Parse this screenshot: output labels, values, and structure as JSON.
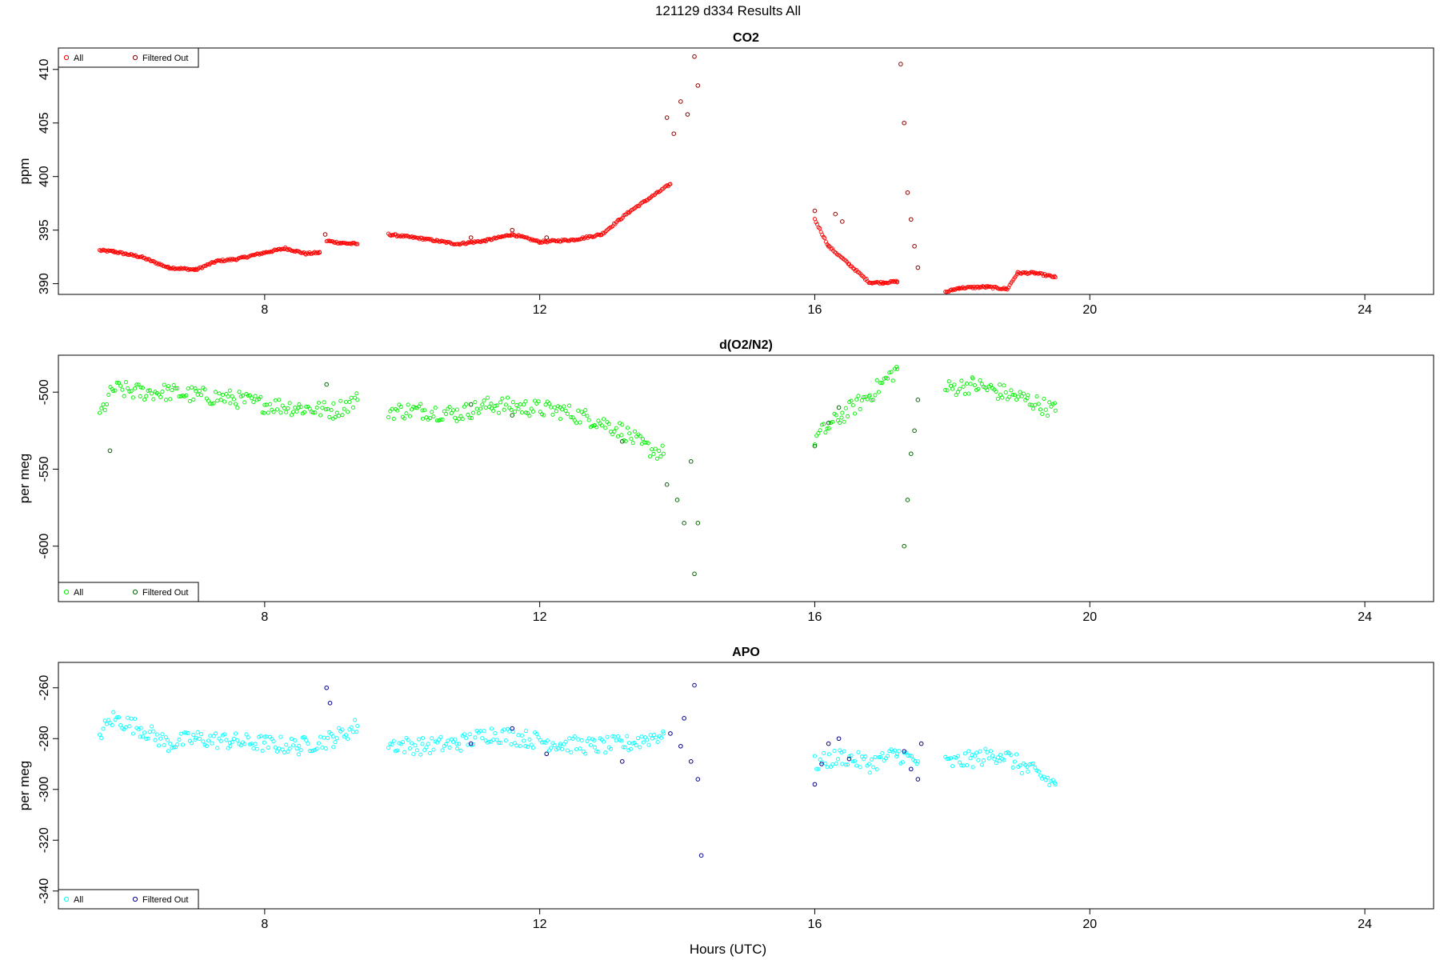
{
  "figure": {
    "title": "121129   d334   Results All",
    "xlabel": "Hours (UTC)"
  },
  "chart_data": [
    {
      "type": "scatter",
      "title": "CO2",
      "ylabel": "ppm",
      "xlim": [
        5,
        25
      ],
      "ylim": [
        389,
        412
      ],
      "xticks": [
        8,
        12,
        16,
        20,
        24
      ],
      "yticks": [
        390,
        395,
        400,
        405,
        410
      ],
      "legend": {
        "position": "top-left",
        "entries": [
          "All",
          "Filtered Out"
        ]
      },
      "colors": {
        "all": "#ff0000",
        "filtered": "#8b0000"
      },
      "series": [
        {
          "name": "All",
          "segments": [
            {
              "x": [
                5.6,
                5.8,
                6.2,
                6.6,
                7.0,
                7.3,
                7.6,
                8.0,
                8.3,
                8.6,
                8.8
              ],
              "y": [
                393.1,
                393.0,
                392.5,
                391.5,
                391.3,
                392.1,
                392.3,
                392.9,
                393.3,
                392.8,
                392.9
              ]
            },
            {
              "x": [
                8.9,
                9.1,
                9.35
              ],
              "y": [
                394.0,
                393.8,
                393.7
              ]
            },
            {
              "x": [
                9.8,
                10.3,
                10.8,
                11.2,
                11.6,
                12.0,
                12.5,
                12.9,
                13.3,
                13.6,
                13.9
              ],
              "y": [
                394.6,
                394.2,
                393.7,
                394.0,
                394.6,
                393.9,
                394.1,
                394.6,
                396.7,
                398.0,
                399.3
              ]
            },
            {
              "x": [
                16.0,
                16.2,
                16.5,
                16.8,
                17.0,
                17.2
              ],
              "y": [
                396.0,
                393.5,
                391.8,
                390.1,
                390.1,
                390.2
              ]
            },
            {
              "x": [
                17.9,
                18.1,
                18.5,
                18.8,
                18.95,
                19.2,
                19.5
              ],
              "y": [
                389.2,
                389.6,
                389.7,
                389.5,
                391.0,
                391.0,
                390.6
              ]
            }
          ]
        },
        {
          "name": "Filtered Out",
          "points": [
            [
              8.88,
              394.6
            ],
            [
              11.0,
              394.3
            ],
            [
              11.6,
              395.0
            ],
            [
              12.1,
              394.3
            ],
            [
              13.85,
              405.5
            ],
            [
              13.95,
              404.0
            ],
            [
              14.05,
              407.0
            ],
            [
              14.15,
              405.8
            ],
            [
              14.25,
              411.2
            ],
            [
              14.3,
              408.5
            ],
            [
              16.0,
              396.8
            ],
            [
              16.3,
              396.5
            ],
            [
              16.4,
              395.8
            ],
            [
              17.25,
              410.5
            ],
            [
              17.3,
              405.0
            ],
            [
              17.35,
              398.5
            ],
            [
              17.4,
              396.0
            ],
            [
              17.45,
              393.5
            ],
            [
              17.5,
              391.5
            ]
          ]
        }
      ]
    },
    {
      "type": "scatter",
      "title": "d(O2/N2)",
      "ylabel": "per meg",
      "xlim": [
        5,
        25
      ],
      "ylim": [
        -636,
        -476
      ],
      "xticks": [
        8,
        12,
        16,
        20,
        24
      ],
      "yticks": [
        -500,
        -550,
        -600
      ],
      "legend": {
        "position": "bottom-left",
        "entries": [
          "All",
          "Filtered Out"
        ]
      },
      "colors": {
        "all": "#00ee00",
        "filtered": "#006400"
      },
      "series": [
        {
          "name": "All",
          "segments": [
            {
              "x": [
                5.6,
                5.8,
                6.2,
                6.6,
                7.0,
                7.5,
                8.0,
                8.5,
                9.0,
                9.35
              ],
              "y": [
                -515,
                -498,
                -500,
                -500,
                -502,
                -504,
                -508,
                -510,
                -512,
                -505
              ]
            },
            {
              "x": [
                9.8,
                10.3,
                10.8,
                11.3,
                11.8,
                12.3,
                12.8,
                13.2,
                13.5,
                13.8
              ],
              "y": [
                -512,
                -512,
                -514,
                -508,
                -510,
                -512,
                -518,
                -525,
                -535,
                -540
              ]
            },
            {
              "x": [
                16.0,
                16.4,
                16.8,
                17.2
              ],
              "y": [
                -530,
                -515,
                -502,
                -485
              ]
            },
            {
              "x": [
                17.9,
                18.3,
                18.7,
                19.1,
                19.5
              ],
              "y": [
                -498,
                -495,
                -500,
                -505,
                -512
              ]
            }
          ]
        },
        {
          "name": "Filtered Out",
          "points": [
            [
              5.75,
              -538
            ],
            [
              8.9,
              -495
            ],
            [
              11.0,
              -508
            ],
            [
              11.6,
              -515
            ],
            [
              13.2,
              -532
            ],
            [
              13.85,
              -560
            ],
            [
              14.0,
              -570
            ],
            [
              14.1,
              -585
            ],
            [
              14.2,
              -545
            ],
            [
              14.25,
              -618
            ],
            [
              14.3,
              -585
            ],
            [
              16.0,
              -535
            ],
            [
              16.2,
              -520
            ],
            [
              16.35,
              -510
            ],
            [
              17.3,
              -600
            ],
            [
              17.35,
              -570
            ],
            [
              17.4,
              -540
            ],
            [
              17.45,
              -525
            ],
            [
              17.5,
              -505
            ]
          ]
        }
      ]
    },
    {
      "type": "scatter",
      "title": "APO",
      "ylabel": "per meg",
      "xlim": [
        5,
        25
      ],
      "ylim": [
        -347,
        -250
      ],
      "xticks": [
        8,
        12,
        16,
        20,
        24
      ],
      "yticks": [
        -260,
        -280,
        -300,
        -320,
        -340
      ],
      "legend": {
        "position": "bottom-left",
        "entries": [
          "All",
          "Filtered Out"
        ]
      },
      "colors": {
        "all": "#00ffff",
        "filtered": "#00008b"
      },
      "series": [
        {
          "name": "All",
          "segments": [
            {
              "x": [
                5.6,
                5.8,
                6.2,
                6.6,
                7.0,
                7.5,
                8.0,
                8.5,
                9.0,
                9.35
              ],
              "y": [
                -278,
                -272,
                -276,
                -282,
                -280,
                -281,
                -282,
                -283,
                -280,
                -275
              ]
            },
            {
              "x": [
                9.8,
                10.3,
                10.8,
                11.3,
                11.8,
                12.3,
                12.8,
                13.3,
                13.8
              ],
              "y": [
                -282,
                -283,
                -282,
                -278,
                -280,
                -282,
                -283,
                -282,
                -278
              ]
            },
            {
              "x": [
                16.0,
                16.4,
                16.8,
                17.2,
                17.5
              ],
              "y": [
                -290,
                -287,
                -290,
                -286,
                -289
              ]
            },
            {
              "x": [
                17.9,
                18.3,
                18.7,
                19.1,
                19.5
              ],
              "y": [
                -290,
                -288,
                -286,
                -292,
                -298
              ]
            }
          ]
        },
        {
          "name": "Filtered Out",
          "points": [
            [
              8.9,
              -260
            ],
            [
              8.95,
              -266
            ],
            [
              11.0,
              -282
            ],
            [
              11.6,
              -276
            ],
            [
              12.1,
              -286
            ],
            [
              13.2,
              -289
            ],
            [
              13.9,
              -278
            ],
            [
              14.05,
              -283
            ],
            [
              14.1,
              -272
            ],
            [
              14.2,
              -289
            ],
            [
              14.25,
              -259
            ],
            [
              14.3,
              -296
            ],
            [
              14.35,
              -326
            ],
            [
              16.0,
              -298
            ],
            [
              16.1,
              -290
            ],
            [
              16.2,
              -282
            ],
            [
              16.35,
              -280
            ],
            [
              16.5,
              -288
            ],
            [
              17.3,
              -285
            ],
            [
              17.4,
              -292
            ],
            [
              17.5,
              -296
            ],
            [
              17.55,
              -282
            ]
          ]
        }
      ]
    }
  ]
}
